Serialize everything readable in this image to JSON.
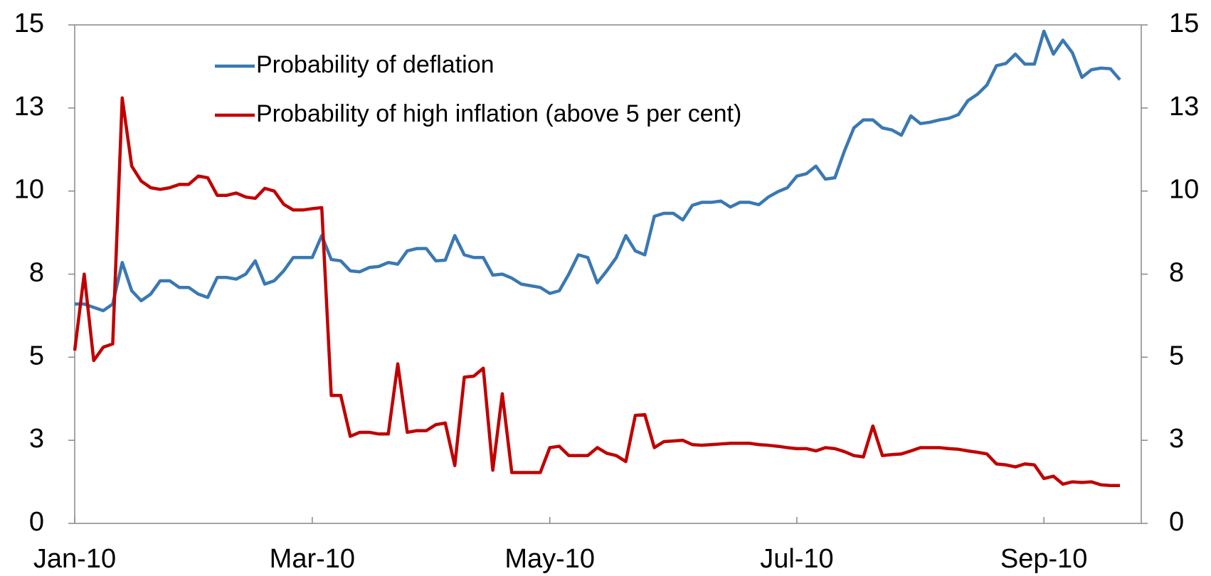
{
  "chart_data": {
    "type": "line",
    "categories": [
      "Jan-10",
      null,
      null,
      null,
      null,
      null,
      null,
      null,
      null,
      null,
      null,
      null,
      null,
      null,
      null,
      null,
      null,
      null,
      null,
      null,
      null,
      null,
      null,
      null,
      null,
      "Mar-10",
      null,
      null,
      null,
      null,
      null,
      null,
      null,
      null,
      null,
      null,
      null,
      null,
      null,
      null,
      null,
      null,
      null,
      null,
      null,
      null,
      null,
      null,
      null,
      null,
      "May-10",
      null,
      null,
      null,
      null,
      null,
      null,
      null,
      null,
      null,
      null,
      null,
      null,
      null,
      null,
      null,
      null,
      null,
      null,
      null,
      null,
      null,
      null,
      null,
      null,
      null,
      "Jul-10",
      null,
      null,
      null,
      null,
      null,
      null,
      null,
      null,
      null,
      null,
      null,
      null,
      null,
      null,
      null,
      null,
      null,
      null,
      null,
      null,
      null,
      null,
      null,
      null,
      null,
      "Sep-10",
      null,
      null,
      null,
      null,
      null,
      null,
      null,
      null
    ],
    "series": [
      {
        "name": "Probability of deflation",
        "color": "#3a78b2",
        "values": [
          6.6,
          6.6,
          6.5,
          6.4,
          6.6,
          7.85,
          7.0,
          6.7,
          6.9,
          7.3,
          7.3,
          7.1,
          7.1,
          6.9,
          6.8,
          7.4,
          7.4,
          7.35,
          7.5,
          7.9,
          7.2,
          7.3,
          7.6,
          8.0,
          8.0,
          8.0,
          8.66,
          7.94,
          7.9,
          7.6,
          7.57,
          7.7,
          7.73,
          7.85,
          7.8,
          8.2,
          8.27,
          8.27,
          7.9,
          7.92,
          8.66,
          8.08,
          8.0,
          8.0,
          7.47,
          7.5,
          7.38,
          7.2,
          7.15,
          7.1,
          6.92,
          7.0,
          7.5,
          8.08,
          8.0,
          7.24,
          7.6,
          8.0,
          8.66,
          8.2,
          8.08,
          9.24,
          9.33,
          9.33,
          9.13,
          9.57,
          9.66,
          9.66,
          9.7,
          9.52,
          9.66,
          9.66,
          9.59,
          9.82,
          9.98,
          10.1,
          10.45,
          10.52,
          10.75,
          10.36,
          10.4,
          11.2,
          11.9,
          12.14,
          12.14,
          11.9,
          11.84,
          11.68,
          12.26,
          12.03,
          12.07,
          12.14,
          12.19,
          12.3,
          12.72,
          12.91,
          13.19,
          13.77,
          13.84,
          14.12,
          13.82,
          13.82,
          14.81,
          14.12,
          14.54,
          14.16,
          13.42,
          13.65,
          13.7,
          13.68,
          13.35
        ]
      },
      {
        "name": "Probability of high inflation (above 5 per cent)",
        "color": "#c00000",
        "values": [
          5.2,
          7.5,
          4.9,
          5.3,
          5.4,
          12.8,
          10.75,
          10.3,
          10.1,
          10.05,
          10.1,
          10.2,
          10.2,
          10.45,
          10.4,
          9.87,
          9.87,
          9.94,
          9.82,
          9.78,
          10.08,
          10.0,
          9.6,
          9.43,
          9.43,
          9.47,
          9.5,
          3.85,
          3.85,
          2.62,
          2.74,
          2.74,
          2.69,
          2.69,
          4.8,
          2.74,
          2.79,
          2.79,
          2.97,
          3.02,
          1.74,
          4.4,
          4.43,
          4.67,
          1.6,
          3.9,
          1.53,
          1.53,
          1.53,
          1.53,
          2.28,
          2.32,
          2.04,
          2.04,
          2.04,
          2.28,
          2.11,
          2.04,
          1.86,
          3.25,
          3.27,
          2.28,
          2.46,
          2.48,
          2.5,
          2.37,
          2.35,
          2.37,
          2.39,
          2.41,
          2.41,
          2.41,
          2.37,
          2.35,
          2.32,
          2.28,
          2.25,
          2.25,
          2.18,
          2.28,
          2.25,
          2.16,
          2.04,
          2.0,
          2.93,
          2.04,
          2.07,
          2.09,
          2.18,
          2.28,
          2.28,
          2.28,
          2.25,
          2.23,
          2.18,
          2.14,
          2.09,
          1.79,
          1.76,
          1.7,
          1.79,
          1.76,
          1.35,
          1.42,
          1.18,
          1.25,
          1.23,
          1.25,
          1.16,
          1.14,
          1.14
        ]
      }
    ],
    "ylim": [
      0,
      15
    ],
    "yticks": [
      0,
      {
        "value": 2.5,
        "label": "3"
      },
      5,
      {
        "value": 7.5,
        "label": "8"
      },
      10,
      {
        "value": 12.5,
        "label": "13"
      },
      15
    ],
    "y2lim": [
      0,
      15
    ],
    "y2ticks": [
      0,
      {
        "value": 2.5,
        "label": "3"
      },
      5,
      {
        "value": 7.5,
        "label": "8"
      },
      10,
      {
        "value": 12.5,
        "label": "13"
      },
      15
    ],
    "grid": false,
    "legend": "upper left"
  }
}
